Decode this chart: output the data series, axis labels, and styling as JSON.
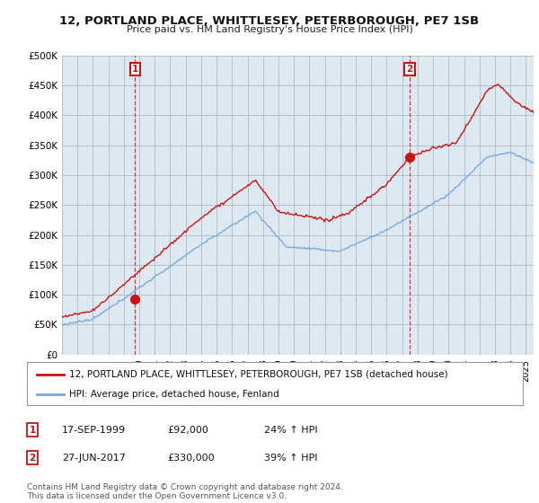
{
  "title": "12, PORTLAND PLACE, WHITTLESEY, PETERBOROUGH, PE7 1SB",
  "subtitle": "Price paid vs. HM Land Registry's House Price Index (HPI)",
  "ylabel_ticks": [
    "£0",
    "£50K",
    "£100K",
    "£150K",
    "£200K",
    "£250K",
    "£300K",
    "£350K",
    "£400K",
    "£450K",
    "£500K"
  ],
  "ytick_values": [
    0,
    50000,
    100000,
    150000,
    200000,
    250000,
    300000,
    350000,
    400000,
    450000,
    500000
  ],
  "ylim": [
    0,
    500000
  ],
  "xlim_start": 1995.0,
  "xlim_end": 2025.5,
  "hpi_color": "#7aaadd",
  "price_color": "#cc1111",
  "chart_bg": "#dde8f0",
  "sale1_date": 1999.72,
  "sale1_price": 92000,
  "sale2_date": 2017.49,
  "sale2_price": 330000,
  "legend_line1": "12, PORTLAND PLACE, WHITTLESEY, PETERBOROUGH, PE7 1SB (detached house)",
  "legend_line2": "HPI: Average price, detached house, Fenland",
  "annotation1_date": "17-SEP-1999",
  "annotation1_price": "£92,000",
  "annotation1_hpi": "24% ↑ HPI",
  "annotation2_date": "27-JUN-2017",
  "annotation2_price": "£330,000",
  "annotation2_hpi": "39% ↑ HPI",
  "footer": "Contains HM Land Registry data © Crown copyright and database right 2024.\nThis data is licensed under the Open Government Licence v3.0.",
  "background_color": "#ffffff",
  "grid_color": "#aabbcc"
}
